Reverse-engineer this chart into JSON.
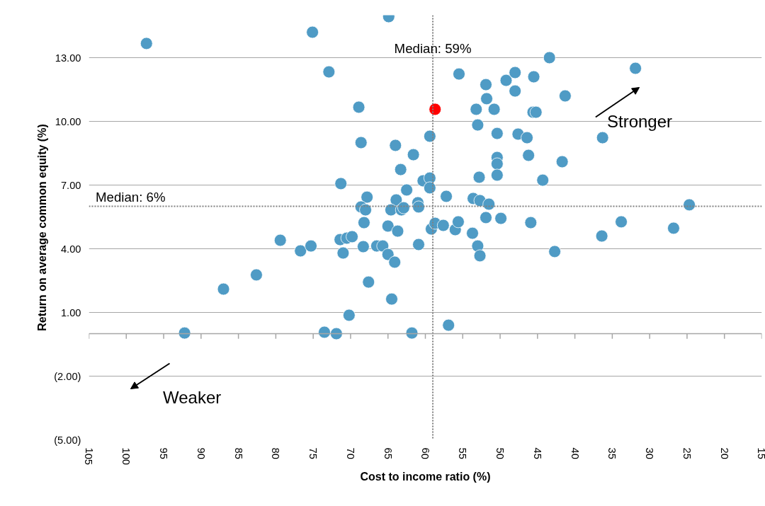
{
  "chart_data": {
    "type": "scatter",
    "xlabel": "Cost to income ratio (%)",
    "ylabel": "Return on average common equity (%)",
    "xlim": [
      105,
      15
    ],
    "xticks": [
      105,
      100,
      95,
      90,
      85,
      80,
      75,
      70,
      65,
      60,
      55,
      50,
      45,
      40,
      35,
      30,
      25,
      20,
      15
    ],
    "ylim": [
      -5,
      15
    ],
    "yticks": [
      {
        "value": -5,
        "label": "(5.00)"
      },
      {
        "value": -2,
        "label": "(2.00)"
      },
      {
        "value": 1,
        "label": "1.00"
      },
      {
        "value": 4,
        "label": "4.00"
      },
      {
        "value": 7,
        "label": "7.00"
      },
      {
        "value": 10,
        "label": "10.00"
      },
      {
        "value": 13,
        "label": "13.00"
      }
    ],
    "grid": "y",
    "marker": "circle",
    "series": [
      {
        "color": "#4f9bc5",
        "x": [
          97.3,
          75.1,
          64.9,
          72.9,
          68.9,
          68.6,
          64.0,
          61.6,
          63.3,
          71.3,
          67.8,
          62.5,
          60.3,
          63.9,
          68.6,
          68.0,
          64.6,
          63.2,
          62.9,
          61.0,
          60.9,
          68.2,
          65.0,
          63.7,
          71.4,
          70.5,
          69.8,
          79.4,
          76.7,
          75.3,
          71.0,
          68.3,
          66.5,
          65.7,
          65.0,
          64.1,
          60.9,
          67.6,
          64.5,
          70.2,
          82.6,
          87.0,
          92.2,
          73.5,
          71.9,
          61.8,
          56.9,
          59.4,
          59.4,
          59.4,
          59.2,
          58.7,
          57.6,
          57.2,
          55.5,
          56.0,
          55.6,
          53.2,
          53.0,
          51.9,
          51.8,
          50.8,
          52.8,
          53.6,
          52.7,
          51.5,
          51.9,
          53.7,
          53.0,
          52.7,
          50.4,
          50.4,
          50.4,
          50.4,
          49.9,
          49.2,
          48.0,
          48.0,
          47.6,
          45.5,
          46.4,
          46.2,
          45.9,
          45.6,
          45.2,
          43.4,
          41.3,
          44.3,
          41.7,
          42.7,
          31.9,
          36.3,
          36.4,
          33.8,
          26.8,
          24.7
        ],
        "values": [
          13.67,
          14.2,
          14.93,
          12.33,
          10.67,
          9.0,
          8.87,
          8.43,
          7.73,
          7.07,
          6.43,
          6.77,
          7.2,
          6.3,
          5.97,
          5.83,
          5.83,
          5.83,
          5.93,
          6.17,
          5.97,
          5.23,
          5.07,
          4.83,
          4.43,
          4.5,
          4.57,
          4.4,
          3.9,
          4.13,
          3.8,
          4.1,
          4.13,
          4.13,
          3.73,
          3.37,
          4.2,
          2.43,
          1.63,
          0.87,
          2.77,
          2.1,
          0.03,
          0.07,
          0.0,
          0.03,
          0.4,
          9.3,
          7.33,
          6.87,
          4.93,
          5.2,
          5.1,
          6.47,
          12.23,
          4.9,
          5.27,
          10.57,
          9.83,
          11.73,
          11.07,
          10.57,
          7.37,
          6.37,
          6.27,
          6.1,
          5.47,
          4.73,
          4.13,
          3.67,
          9.43,
          8.3,
          8.0,
          7.47,
          5.43,
          11.93,
          12.3,
          11.43,
          9.4,
          12.1,
          9.23,
          8.4,
          5.23,
          10.43,
          10.43,
          13.0,
          11.2,
          7.23,
          8.1,
          3.87,
          12.5,
          9.23,
          4.6,
          5.27,
          4.97,
          6.07
        ]
      },
      {
        "color": "#ff0000",
        "x": [
          58.7
        ],
        "values": [
          10.57
        ]
      }
    ],
    "ref_lines": [
      {
        "axis": "x",
        "value": 59,
        "label": "Median: 59%",
        "color": "#808080",
        "line_style": "dotted"
      },
      {
        "axis": "y",
        "value": 6,
        "label": "Median: 6%",
        "color": "#808080",
        "line_style": "dotted"
      },
      {
        "axis": "y",
        "value": 0,
        "color": "#a6a6a6",
        "line_style": "solid"
      }
    ],
    "annotations": [
      "Stronger",
      "Weaker"
    ]
  }
}
